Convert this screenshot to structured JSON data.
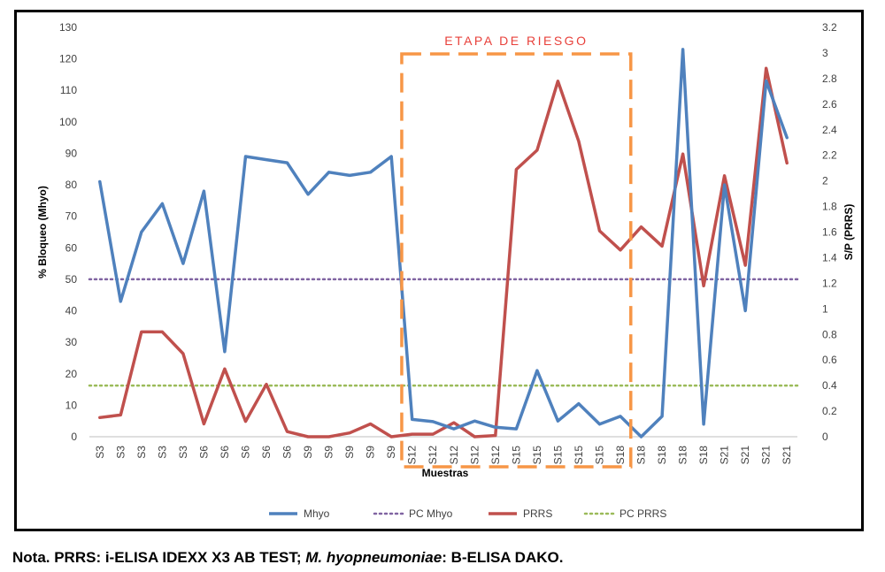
{
  "chart_data": {
    "type": "line",
    "x_title": "Muestras",
    "categories": [
      "S3",
      "S3",
      "S3",
      "S3",
      "S3",
      "S6",
      "S6",
      "S6",
      "S6",
      "S6",
      "S9",
      "S9",
      "S9",
      "S9",
      "S9",
      "S12",
      "S12",
      "S12",
      "S12",
      "S12",
      "S15",
      "S15",
      "S15",
      "S15",
      "S15",
      "S18",
      "S18",
      "S18",
      "S18",
      "S18",
      "S21",
      "S21",
      "S21",
      "S21"
    ],
    "ylabel_left": "% Bloqueo  (Mhyo)",
    "ylabel_right": "S/P  (PRRS)",
    "left_ticks": [
      "0",
      "10",
      "20",
      "30",
      "40",
      "50",
      "60",
      "70",
      "80",
      "90",
      "100",
      "110",
      "120",
      "130"
    ],
    "right_ticks": [
      "0",
      "0.2",
      "0.4",
      "0.6",
      "0.8",
      "1",
      "1.2",
      "1.4",
      "1.6",
      "1.8",
      "2",
      "2.2",
      "2.4",
      "2.6",
      "2.8",
      "3",
      "3.2"
    ],
    "ylim_left": [
      0,
      130
    ],
    "ylim_right": [
      0,
      3.2
    ],
    "grid": false,
    "legend_position": "bottom",
    "series": [
      {
        "name": "Mhyo",
        "axis": "left",
        "color": "#4f81bd",
        "style": "solid",
        "values": [
          81,
          43,
          65,
          74,
          55,
          78,
          27,
          89,
          88,
          87,
          77,
          84,
          83,
          84,
          89,
          5.5,
          4.8,
          2.5,
          5.0,
          3.0,
          2.5,
          21,
          5.0,
          10.5,
          4.0,
          6.5,
          0,
          6.5,
          123,
          4.0,
          80,
          40,
          113,
          95
        ]
      },
      {
        "name": "PC Mhyo",
        "axis": "left",
        "color": "#8064a2",
        "style": "dotted",
        "values": [
          50,
          50,
          50,
          50,
          50,
          50,
          50,
          50,
          50,
          50,
          50,
          50,
          50,
          50,
          50,
          50,
          50,
          50,
          50,
          50,
          50,
          50,
          50,
          50,
          50,
          50,
          50,
          50,
          50,
          50,
          50,
          50,
          50,
          50
        ]
      },
      {
        "name": "PRRS",
        "axis": "right",
        "color": "#c0504d",
        "style": "solid",
        "values": [
          0.15,
          0.17,
          0.82,
          0.82,
          0.65,
          0.1,
          0.53,
          0.12,
          0.41,
          0.04,
          0,
          0,
          0.03,
          0.1,
          0,
          0.02,
          0.02,
          0.11,
          0,
          0.01,
          2.09,
          2.24,
          2.78,
          2.31,
          1.61,
          1.46,
          1.64,
          1.49,
          2.21,
          1.18,
          2.04,
          1.34,
          2.88,
          2.14
        ]
      },
      {
        "name": "PC PRRS",
        "axis": "right",
        "color": "#9bbb59",
        "style": "dotted",
        "values": [
          0.4,
          0.4,
          0.4,
          0.4,
          0.4,
          0.4,
          0.4,
          0.4,
          0.4,
          0.4,
          0.4,
          0.4,
          0.4,
          0.4,
          0.4,
          0.4,
          0.4,
          0.4,
          0.4,
          0.4,
          0.4,
          0.4,
          0.4,
          0.4,
          0.4,
          0.4,
          0.4,
          0.4,
          0.4,
          0.4,
          0.4,
          0.4,
          0.4,
          0.4
        ]
      }
    ],
    "annotation": {
      "text": "ETAPA DE RIESGO",
      "color": "#e8403a",
      "box_color": "#f79646",
      "from_index": 14.5,
      "to_index": 25.5
    }
  },
  "footnote": {
    "part1": "Nota. PRRS: i-ELISA IDEXX X3 AB TEST; ",
    "part2": "M. hyopneumoniae",
    "part3": ": B-ELISA DAKO."
  }
}
